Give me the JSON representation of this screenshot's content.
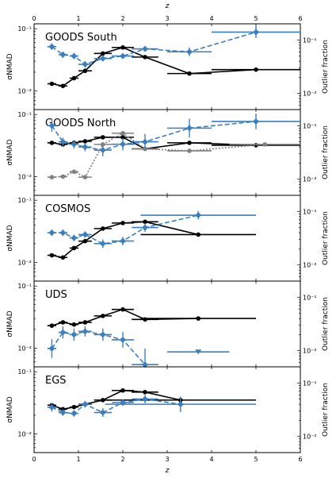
{
  "figure": {
    "top_xlabel": "z",
    "bottom_xlabel": "z",
    "x_ticks": [
      "0",
      "1",
      "2",
      "3",
      "4",
      "5",
      "6"
    ],
    "xlim": [
      0,
      6
    ],
    "left_ylabel": "σNMAD",
    "right_ylabel": "Outlier fraction"
  },
  "colors": {
    "nmad": "#000000",
    "outlier": "#3a7fc0",
    "grey": "#808080"
  },
  "chart_data": [
    {
      "type": "line",
      "title": "GOODS South",
      "xlim": [
        0,
        6
      ],
      "left_yscale": "log",
      "left_ylim": [
        0.005,
        0.12
      ],
      "left_ticks": [
        {
          "v": 0.1,
          "label": "10⁻¹"
        },
        {
          "v": 0.01,
          "label": "10⁻²"
        }
      ],
      "right_yscale": "log",
      "right_ylim": [
        0.005,
        0.2
      ],
      "right_ticks": [
        {
          "v": 0.1,
          "label": "10⁻¹"
        },
        {
          "v": 0.01,
          "label": "10⁻²"
        }
      ],
      "series": [
        {
          "axis": "left",
          "style": "nmad",
          "x": [
            0.4,
            0.65,
            0.9,
            1.15,
            1.55,
            2.0,
            2.5,
            3.5,
            5.0
          ],
          "y": [
            0.013,
            0.012,
            0.016,
            0.021,
            0.04,
            0.05,
            0.035,
            0.019,
            0.022
          ],
          "xerr": [
            0.1,
            0.1,
            0.1,
            0.15,
            0.2,
            0.25,
            0.3,
            0.5,
            1.0
          ]
        },
        {
          "axis": "right",
          "style": "outlier",
          "x": [
            0.4,
            0.65,
            0.9,
            1.15,
            1.55,
            2.0,
            2.5,
            3.5,
            5.0
          ],
          "y": [
            0.075,
            0.053,
            0.05,
            0.035,
            0.045,
            0.05,
            0.068,
            0.06,
            0.14
          ],
          "xerr": [
            0.1,
            0.1,
            0.1,
            0.15,
            0.2,
            0.25,
            0.3,
            0.5,
            1.0
          ],
          "yerr_factor": [
            1.15,
            1.15,
            1.15,
            1.15,
            1.1,
            1.1,
            1.1,
            1.2,
            1.3
          ]
        }
      ]
    },
    {
      "type": "line",
      "title": "GOODS North",
      "xlim": [
        0,
        6
      ],
      "left_yscale": "log",
      "left_ylim": [
        0.005,
        0.12
      ],
      "left_ticks": [
        {
          "v": 0.1,
          "label": "10⁻¹"
        },
        {
          "v": 0.01,
          "label": "10⁻²"
        }
      ],
      "right_yscale": "log",
      "right_ylim": [
        0.005,
        0.2
      ],
      "right_ticks": [
        {
          "v": 0.1,
          "label": "10⁻¹"
        },
        {
          "v": 0.01,
          "label": "10⁻²"
        }
      ],
      "series": [
        {
          "axis": "left",
          "style": "nmad",
          "x": [
            0.4,
            0.65,
            0.9,
            1.15,
            1.55,
            2.0,
            2.5,
            3.5,
            5.0
          ],
          "y": [
            0.035,
            0.033,
            0.035,
            0.037,
            0.043,
            0.043,
            0.028,
            0.035,
            0.032
          ],
          "xerr": [
            0.1,
            0.1,
            0.1,
            0.15,
            0.2,
            0.25,
            0.3,
            0.5,
            1.0
          ]
        },
        {
          "axis": "right",
          "style": "outlier",
          "x": [
            0.4,
            0.65,
            0.9,
            1.15,
            1.55,
            2.0,
            2.5,
            3.5,
            5.0
          ],
          "y": [
            0.1,
            0.05,
            0.045,
            0.04,
            0.035,
            0.045,
            0.05,
            0.09,
            0.12
          ],
          "xerr": [
            0.1,
            0.1,
            0.1,
            0.15,
            0.2,
            0.25,
            0.3,
            0.5,
            1.0
          ],
          "yerr_factor": [
            1.3,
            1.2,
            1.2,
            1.2,
            1.3,
            1.3,
            1.4,
            1.5,
            1.4
          ]
        },
        {
          "axis": "left",
          "style": "grey",
          "x": [
            0.4,
            0.65,
            0.9,
            1.15,
            1.55,
            2.0,
            2.5,
            3.5,
            5.2
          ],
          "y": [
            0.0098,
            0.01,
            0.012,
            0.0098,
            0.033,
            0.05,
            0.028,
            0.026,
            0.033
          ],
          "xerr": [
            0.1,
            0.1,
            0.1,
            0.15,
            0.2,
            0.25,
            0.3,
            0.5,
            0.8
          ]
        }
      ]
    },
    {
      "type": "line",
      "title": "COSMOS",
      "xlim": [
        0,
        6
      ],
      "left_yscale": "log",
      "left_ylim": [
        0.005,
        0.12
      ],
      "left_ticks": [
        {
          "v": 0.1,
          "label": "10⁻¹"
        },
        {
          "v": 0.01,
          "label": "10⁻²"
        }
      ],
      "right_yscale": "log",
      "right_ylim": [
        0.005,
        0.2
      ],
      "right_ticks": [
        {
          "v": 0.1,
          "label": "10⁻¹"
        },
        {
          "v": 0.01,
          "label": "10⁻²"
        }
      ],
      "series": [
        {
          "axis": "left",
          "style": "nmad",
          "x": [
            0.4,
            0.65,
            0.9,
            1.15,
            1.55,
            2.0,
            2.5,
            3.7
          ],
          "y": [
            0.013,
            0.012,
            0.017,
            0.022,
            0.035,
            0.043,
            0.045,
            0.028
          ],
          "xerr": [
            0.1,
            0.1,
            0.1,
            0.15,
            0.2,
            0.25,
            0.3,
            1.3
          ]
        },
        {
          "axis": "right",
          "style": "outlier",
          "x": [
            0.4,
            0.65,
            0.9,
            1.15,
            1.55,
            2.0,
            2.5,
            3.7
          ],
          "y": [
            0.04,
            0.04,
            0.032,
            0.037,
            0.025,
            0.028,
            0.05,
            0.085
          ],
          "xerr": [
            0.1,
            0.1,
            0.1,
            0.15,
            0.2,
            0.25,
            0.3,
            1.3
          ],
          "yerr_factor": [
            1.15,
            1.15,
            1.15,
            1.15,
            1.2,
            1.2,
            1.2,
            1.2
          ]
        }
      ]
    },
    {
      "type": "line",
      "title": "UDS",
      "xlim": [
        0,
        6
      ],
      "left_yscale": "log",
      "left_ylim": [
        0.005,
        0.12
      ],
      "left_ticks": [
        {
          "v": 0.1,
          "label": "10⁻¹"
        },
        {
          "v": 0.01,
          "label": "10⁻²"
        }
      ],
      "right_yscale": "log",
      "right_ylim": [
        0.005,
        0.2
      ],
      "right_ticks": [
        {
          "v": 0.1,
          "label": "10⁻¹"
        },
        {
          "v": 0.01,
          "label": "10⁻²"
        }
      ],
      "series": [
        {
          "axis": "left",
          "style": "nmad",
          "x": [
            0.4,
            0.65,
            0.9,
            1.15,
            1.55,
            2.0,
            2.5,
            3.7
          ],
          "y": [
            0.023,
            0.026,
            0.024,
            0.026,
            0.033,
            0.042,
            0.029,
            0.03
          ],
          "xerr": [
            0.1,
            0.1,
            0.1,
            0.15,
            0.2,
            0.25,
            0.3,
            1.3
          ]
        },
        {
          "axis": "right",
          "style": "outlier",
          "x": [
            0.4,
            0.65,
            0.9,
            1.15,
            1.55,
            2.0,
            2.5
          ],
          "y": [
            0.011,
            0.022,
            0.02,
            0.023,
            0.02,
            0.016,
            0.0055
          ],
          "xerr": [
            0.1,
            0.1,
            0.1,
            0.15,
            0.2,
            0.25,
            0.3
          ],
          "yerr_factor": [
            1.5,
            1.3,
            1.3,
            1.25,
            1.3,
            1.4,
            2.0
          ]
        },
        {
          "axis": "right",
          "style": "outlier-upper",
          "x": [
            3.7
          ],
          "y": [
            0.0095
          ],
          "xerr": [
            0.7
          ]
        }
      ]
    },
    {
      "type": "line",
      "title": "EGS",
      "xlim": [
        0,
        6
      ],
      "left_yscale": "log",
      "left_ylim": [
        0.005,
        0.12
      ],
      "left_ticks": [
        {
          "v": 0.1,
          "label": "10⁻¹"
        },
        {
          "v": 0.01,
          "label": "10⁻²"
        }
      ],
      "right_yscale": "log",
      "right_ylim": [
        0.005,
        0.2
      ],
      "right_ticks": [
        {
          "v": 0.1,
          "label": "10⁻¹"
        },
        {
          "v": 0.01,
          "label": "10⁻²"
        }
      ],
      "series": [
        {
          "axis": "left",
          "style": "nmad",
          "x": [
            0.4,
            0.65,
            0.9,
            1.15,
            1.55,
            2.0,
            2.5,
            3.3
          ],
          "y": [
            0.029,
            0.025,
            0.027,
            0.03,
            0.035,
            0.05,
            0.047,
            0.035
          ],
          "xerr": [
            0.1,
            0.1,
            0.1,
            0.15,
            0.2,
            0.25,
            0.3,
            1.7
          ]
        },
        {
          "axis": "right",
          "style": "outlier",
          "x": [
            0.4,
            0.65,
            0.9,
            1.15,
            1.55,
            2.0,
            2.5,
            3.3
          ],
          "y": [
            0.035,
            0.028,
            0.027,
            0.04,
            0.028,
            0.043,
            0.05,
            0.04
          ],
          "xerr": [
            0.1,
            0.1,
            0.1,
            0.15,
            0.2,
            0.25,
            0.3,
            1.7
          ],
          "yerr_factor": [
            1.2,
            1.15,
            1.15,
            1.15,
            1.2,
            1.15,
            1.2,
            1.4
          ]
        }
      ]
    }
  ]
}
